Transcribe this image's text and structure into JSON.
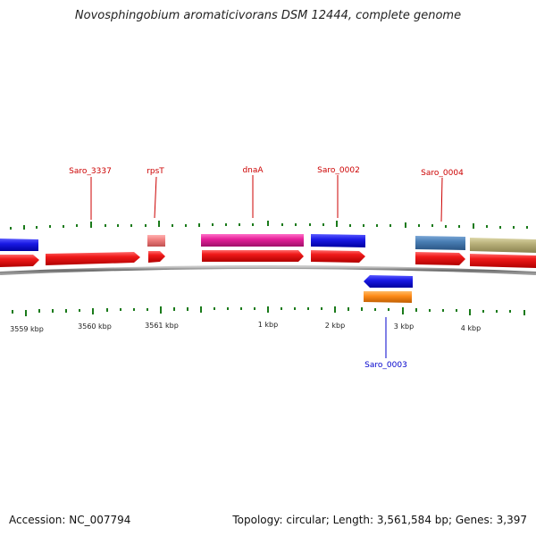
{
  "title": "Novosphingobium aromaticivorans DSM 12444, complete genome",
  "footer": {
    "accession": "Accession: NC_007794",
    "summary": "Topology: circular; Length: 3,561,584 bp; Genes: 3,397"
  },
  "colors": {
    "forward_gene": "#e8141b",
    "backbone": "#8a8a8a",
    "tick": "#1a7a1a",
    "label_forward": "#cc0000",
    "label_reverse": "#0000cc"
  },
  "tick_labels": [
    "3559 kbp",
    "3560 kbp",
    "3561 kbp",
    "1 kbp",
    "2 kbp",
    "3 kbp",
    "4 kbp"
  ],
  "gene_labels": [
    {
      "name": "Saro_3337",
      "strand": "forward"
    },
    {
      "name": "rpsT",
      "strand": "forward"
    },
    {
      "name": "dnaA",
      "strand": "forward"
    },
    {
      "name": "Saro_0002",
      "strand": "forward"
    },
    {
      "name": "Saro_0004",
      "strand": "forward"
    },
    {
      "name": "Saro_0003",
      "strand": "reverse"
    }
  ],
  "feature_colors": {
    "upper_track": [
      "#1a1ae6",
      "#f08080",
      "#e6219a",
      "#1a1ae6",
      "#4a7fb5",
      "#b8b07a"
    ],
    "reverse_track": [
      "#1a1ae6",
      "#ff8c1a"
    ]
  }
}
